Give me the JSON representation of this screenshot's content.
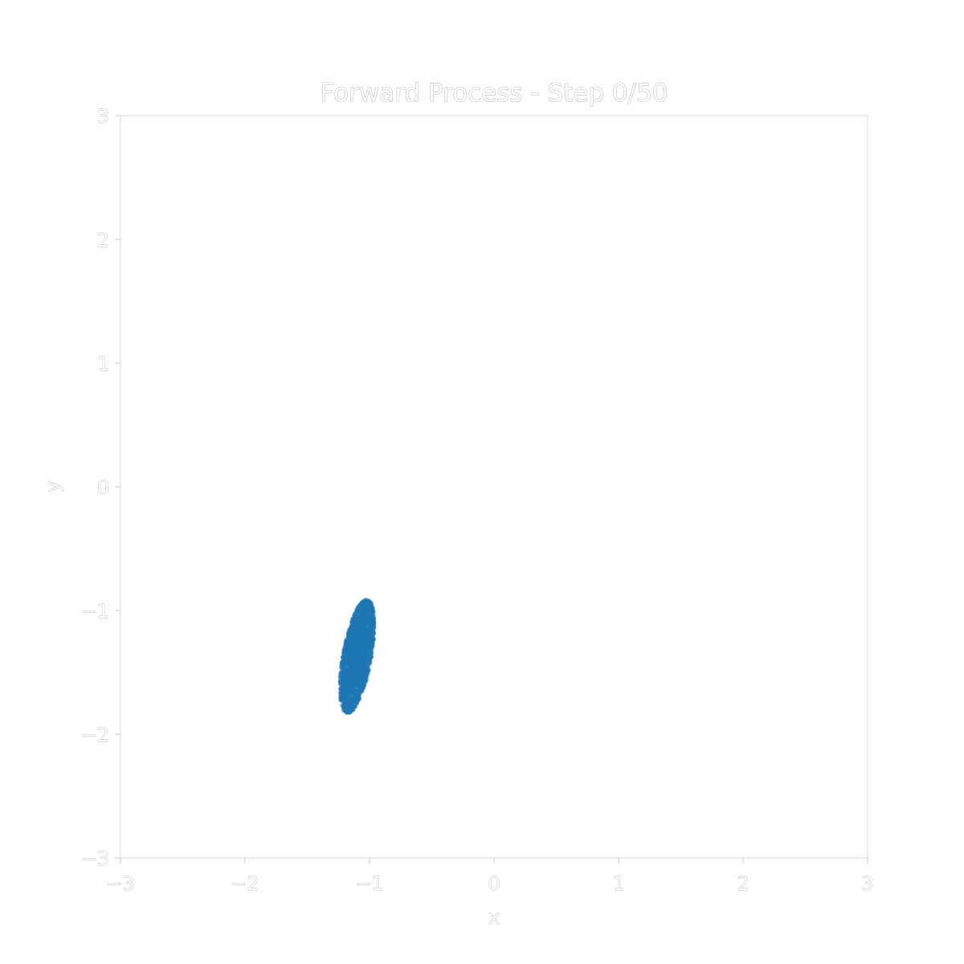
{
  "chart_data": {
    "type": "scatter",
    "title": "Forward Process - Step 0/50",
    "xlabel": "x",
    "ylabel": "y",
    "xlim": [
      -3,
      3
    ],
    "ylim": [
      -3,
      3
    ],
    "xticks": [
      -3,
      -2,
      -1,
      0,
      1,
      2,
      3
    ],
    "yticks": [
      -3,
      -2,
      -1,
      0,
      1,
      2,
      3
    ],
    "xtick_labels": [
      "−3",
      "−2",
      "−1",
      "0",
      "1",
      "2",
      "3"
    ],
    "ytick_labels": [
      "−3",
      "−2",
      "−1",
      "0",
      "1",
      "2",
      "3"
    ],
    "grid": false,
    "series": [
      {
        "color": "#1f77b4",
        "cluster": {
          "center": [
            -1.1,
            -1.37
          ],
          "extent_x": [
            -1.28,
            -0.91
          ],
          "extent_y": [
            -1.84,
            -0.89
          ],
          "tilt_deg": 10
        }
      }
    ]
  }
}
